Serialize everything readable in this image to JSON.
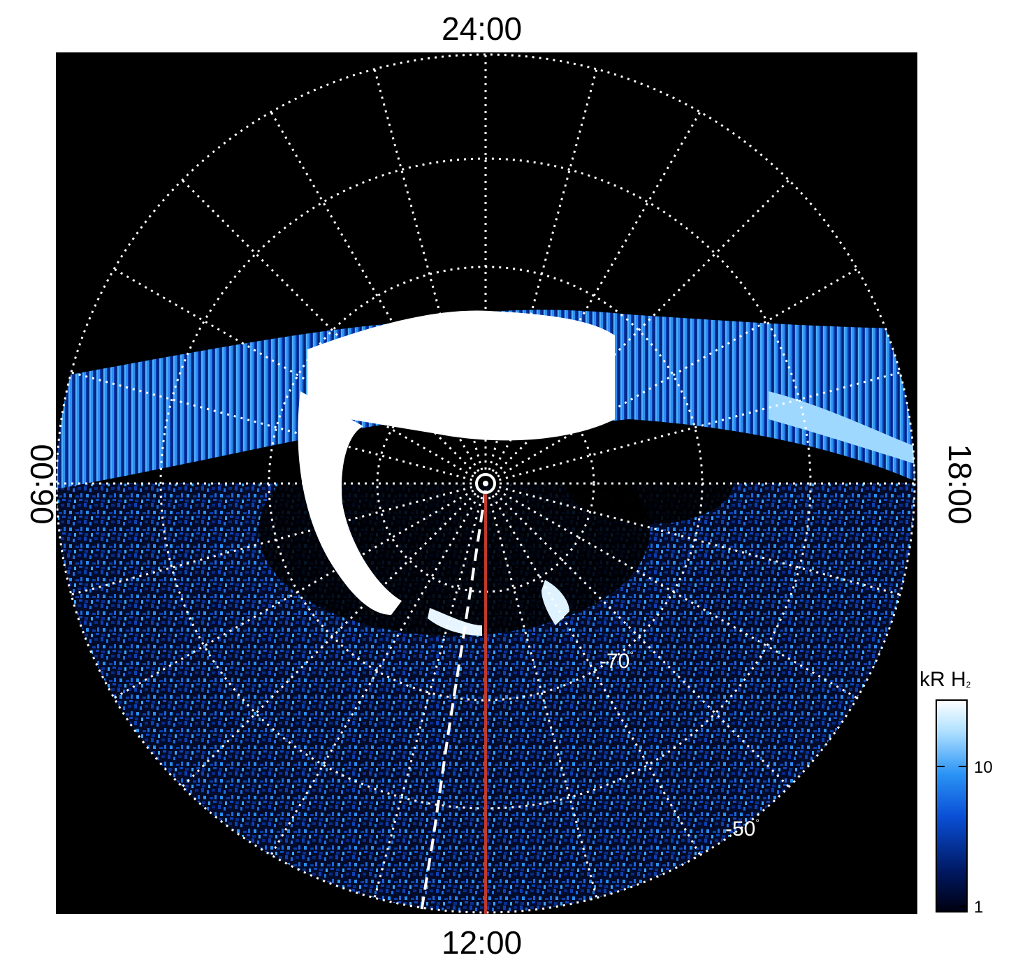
{
  "local_time_labels": {
    "top": "24:00",
    "bottom": "12:00",
    "left": "06:00",
    "right": "18:00"
  },
  "latitude_labels": {
    "inner": "-70",
    "outer": "-50",
    "degree_symbol": "°"
  },
  "colorbar": {
    "unit": "kR H",
    "unit_subscript": "2",
    "tick_labels": [
      "10",
      "1"
    ],
    "scale": "log",
    "colors": [
      "#000010",
      "#001a66",
      "#0a4fd6",
      "#2a93f5",
      "#aee0ff",
      "#ffffff"
    ]
  },
  "colors": {
    "background": "#000000",
    "grid": "#ffffff",
    "meridian_line": "#c0392b",
    "aurora_bright": "#ffffff",
    "aurora_mid": "#1e7fe8"
  }
}
